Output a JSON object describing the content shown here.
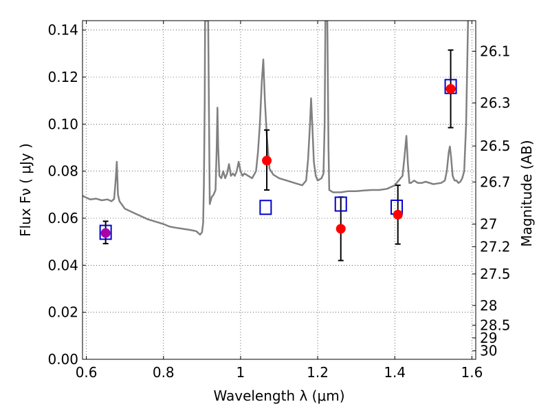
{
  "chart_data": {
    "type": "scatter",
    "xlabel": "Wavelength  λ (μm)",
    "ylabel": "Flux  Fν  ( μJy )",
    "y2label": "Magnitude (AB)",
    "xlim": [
      0.59,
      1.61
    ],
    "ylim": [
      0.0,
      0.144
    ],
    "grid": true,
    "grid_style": "dotted",
    "x_ticks": [
      0.6,
      0.8,
      1.0,
      1.2,
      1.4,
      1.6
    ],
    "x_tick_labels": [
      "0.6",
      "0.8",
      "1",
      "1.2",
      "1.4",
      "1.6"
    ],
    "y_ticks": [
      0.0,
      0.02,
      0.04,
      0.06,
      0.08,
      0.1,
      0.12,
      0.14
    ],
    "y_tick_labels": [
      "0.00",
      "0.02",
      "0.04",
      "0.06",
      "0.08",
      "0.10",
      "0.12",
      "0.14"
    ],
    "y2_ticks": [
      {
        "label": "26.1",
        "flux": 0.131
      },
      {
        "label": "26.3",
        "flux": 0.109
      },
      {
        "label": "26.5",
        "flux": 0.0907
      },
      {
        "label": "26.7",
        "flux": 0.0754
      },
      {
        "label": "27",
        "flux": 0.0575
      },
      {
        "label": "27.2",
        "flux": 0.0479
      },
      {
        "label": "27.5",
        "flux": 0.0363
      },
      {
        "label": "28",
        "flux": 0.0229
      },
      {
        "label": "28.5",
        "flux": 0.0145
      },
      {
        "label": "29",
        "flux": 0.0091
      },
      {
        "label": "30",
        "flux": 0.0036
      }
    ],
    "series": [
      {
        "kind": "model_spectrum",
        "color": "#808080",
        "x": [
          0.59,
          0.61,
          0.625,
          0.64,
          0.655,
          0.665,
          0.672,
          0.676,
          0.679,
          0.682,
          0.686,
          0.7,
          0.72,
          0.74,
          0.76,
          0.78,
          0.8,
          0.815,
          0.83,
          0.85,
          0.87,
          0.885,
          0.895,
          0.9,
          0.903,
          0.905,
          0.907,
          0.908,
          0.912,
          0.916,
          0.92,
          0.925,
          0.93,
          0.935,
          0.938,
          0.94,
          0.942,
          0.945,
          0.95,
          0.955,
          0.96,
          0.965,
          0.97,
          0.975,
          0.98,
          0.985,
          0.99,
          0.995,
          1.0,
          1.005,
          1.01,
          1.02,
          1.03,
          1.04,
          1.045,
          1.05,
          1.055,
          1.059,
          1.063,
          1.068,
          1.075,
          1.085,
          1.1,
          1.12,
          1.14,
          1.16,
          1.17,
          1.175,
          1.18,
          1.183,
          1.186,
          1.19,
          1.195,
          1.2,
          1.205,
          1.21,
          1.215,
          1.218,
          1.22,
          1.222,
          1.225,
          1.228,
          1.23,
          1.24,
          1.26,
          1.28,
          1.3,
          1.32,
          1.34,
          1.36,
          1.38,
          1.4,
          1.41,
          1.42,
          1.425,
          1.43,
          1.434,
          1.438,
          1.442,
          1.45,
          1.46,
          1.47,
          1.48,
          1.5,
          1.52,
          1.53,
          1.535,
          1.54,
          1.543,
          1.546,
          1.55,
          1.555,
          1.56,
          1.565,
          1.57,
          1.575,
          1.58,
          1.585,
          1.59
        ],
        "y": [
          0.0695,
          0.068,
          0.0683,
          0.0676,
          0.068,
          0.0672,
          0.0682,
          0.076,
          0.084,
          0.07,
          0.0672,
          0.064,
          0.0625,
          0.061,
          0.0595,
          0.0585,
          0.0575,
          0.0565,
          0.056,
          0.0555,
          0.055,
          0.0545,
          0.053,
          0.054,
          0.058,
          0.075,
          0.11,
          0.144,
          0.144,
          0.144,
          0.066,
          0.069,
          0.07,
          0.072,
          0.09,
          0.107,
          0.09,
          0.078,
          0.077,
          0.08,
          0.077,
          0.079,
          0.083,
          0.078,
          0.079,
          0.078,
          0.08,
          0.084,
          0.08,
          0.078,
          0.079,
          0.078,
          0.077,
          0.08,
          0.088,
          0.1,
          0.118,
          0.1275,
          0.11,
          0.095,
          0.081,
          0.0785,
          0.077,
          0.076,
          0.075,
          0.074,
          0.076,
          0.085,
          0.1,
          0.111,
          0.1,
          0.084,
          0.078,
          0.076,
          0.0765,
          0.077,
          0.079,
          0.1,
          0.144,
          0.144,
          0.144,
          0.09,
          0.072,
          0.071,
          0.071,
          0.0715,
          0.0715,
          0.0718,
          0.072,
          0.072,
          0.0725,
          0.074,
          0.076,
          0.078,
          0.086,
          0.095,
          0.083,
          0.075,
          0.075,
          0.076,
          0.075,
          0.075,
          0.0755,
          0.0745,
          0.075,
          0.076,
          0.08,
          0.088,
          0.0905,
          0.086,
          0.078,
          0.076,
          0.076,
          0.075,
          0.0755,
          0.077,
          0.08,
          0.1,
          0.144
        ]
      },
      {
        "kind": "model_photometry",
        "marker": "square",
        "color": "#0000cc",
        "x": [
          0.65,
          1.065,
          1.26,
          1.405,
          1.545
        ],
        "y": [
          0.054,
          0.0646,
          0.066,
          0.0647,
          0.116
        ]
      },
      {
        "kind": "observed",
        "marker": "circle",
        "color": "#ff0000",
        "x": [
          0.65,
          1.068,
          1.26,
          1.408,
          1.545
        ],
        "y": [
          0.0537,
          0.0845,
          0.0555,
          0.0615,
          0.115
        ],
        "yerr_low": [
          0.0045,
          0.0125,
          0.0135,
          0.0125,
          0.0165
        ],
        "yerr_high": [
          0.005,
          0.013,
          0.0135,
          0.0125,
          0.0165
        ],
        "first_point_color": "#aa00aa"
      }
    ]
  }
}
